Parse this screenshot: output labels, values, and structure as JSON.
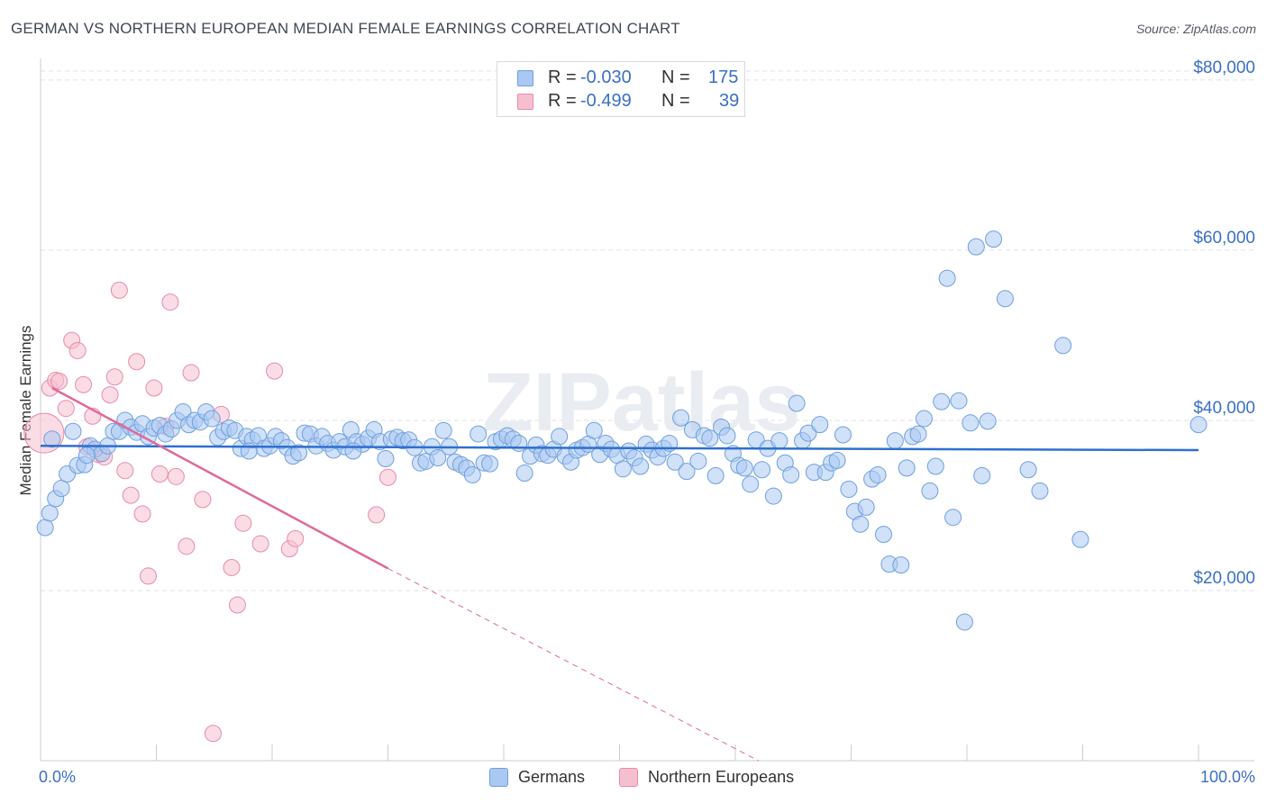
{
  "title": "GERMAN VS NORTHERN EUROPEAN MEDIAN FEMALE EARNINGS CORRELATION CHART",
  "source": "Source: ZipAtlas.com",
  "colors": {
    "blue_fill": "#a9c8f2",
    "blue_stroke": "#6f9fdc",
    "blue_line": "#2e6fd1",
    "pink_fill": "#f6bfd0",
    "pink_stroke": "#e98aa8",
    "pink_line": "#e0689a",
    "axis_label": "#3a6fc4",
    "grid": "#dfe2e8"
  },
  "legend": {
    "rows": [
      {
        "r_label": "R = ",
        "r_value": "-0.030",
        "n_label": "N = ",
        "n_value": "175",
        "series": "Germans"
      },
      {
        "r_label": "R = ",
        "r_value": "-0.499",
        "n_label": "N = ",
        "n_value": "39",
        "series": "Northern Europeans"
      }
    ]
  },
  "bottom_legend": [
    "Germans",
    "Northern Europeans"
  ],
  "chart_data": {
    "type": "scatter",
    "title": "GERMAN VS NORTHERN EUROPEAN MEDIAN FEMALE EARNINGS CORRELATION CHART",
    "xlabel": "",
    "ylabel": "Median Female Earnings",
    "xlim": [
      0,
      100
    ],
    "ylim": [
      0,
      82000
    ],
    "x_tick_labels": [
      "0.0%",
      "100.0%"
    ],
    "y_ticks": [
      20000,
      40000,
      60000,
      80000
    ],
    "y_tick_labels": [
      "$20,000",
      "$40,000",
      "$60,000",
      "$80,000"
    ],
    "watermark": "ZIPatlas",
    "series": [
      {
        "name": "Germans",
        "r": -0.03,
        "n": 175,
        "trend": {
          "x": [
            0,
            100
          ],
          "y": [
            37000,
            36500
          ],
          "dashed_from": null
        },
        "points": [
          [
            0.4,
            27400
          ],
          [
            0.8,
            29100
          ],
          [
            1.3,
            30800
          ],
          [
            1.8,
            32000
          ],
          [
            2.3,
            33700
          ],
          [
            2.8,
            38700
          ],
          [
            3.2,
            34700
          ],
          [
            3.8,
            34800
          ],
          [
            4.3,
            37000
          ],
          [
            4.7,
            36600
          ],
          [
            5.3,
            36100
          ],
          [
            5.8,
            37000
          ],
          [
            6.3,
            38700
          ],
          [
            6.8,
            38700
          ],
          [
            7.3,
            40000
          ],
          [
            7.8,
            39200
          ],
          [
            8.3,
            38600
          ],
          [
            8.8,
            39600
          ],
          [
            9.3,
            38100
          ],
          [
            9.8,
            39100
          ],
          [
            10.3,
            39400
          ],
          [
            10.8,
            38400
          ],
          [
            11.3,
            39000
          ],
          [
            11.8,
            40000
          ],
          [
            12.3,
            41000
          ],
          [
            12.8,
            39500
          ],
          [
            13.3,
            40000
          ],
          [
            13.8,
            39800
          ],
          [
            14.3,
            41000
          ],
          [
            14.8,
            40200
          ],
          [
            15.3,
            38000
          ],
          [
            15.8,
            38700
          ],
          [
            16.3,
            39100
          ],
          [
            16.8,
            38800
          ],
          [
            17.3,
            36700
          ],
          [
            17.8,
            38100
          ],
          [
            18.3,
            37700
          ],
          [
            18.8,
            38200
          ],
          [
            19.3,
            36700
          ],
          [
            19.8,
            37000
          ],
          [
            20.3,
            38100
          ],
          [
            20.8,
            37600
          ],
          [
            21.3,
            36800
          ],
          [
            21.8,
            35800
          ],
          [
            22.3,
            36200
          ],
          [
            22.8,
            38500
          ],
          [
            23.3,
            38400
          ],
          [
            23.8,
            37000
          ],
          [
            24.3,
            38100
          ],
          [
            24.8,
            37300
          ],
          [
            25.3,
            36500
          ],
          [
            25.8,
            37500
          ],
          [
            26.3,
            36900
          ],
          [
            26.8,
            38900
          ],
          [
            27.3,
            37500
          ],
          [
            27.8,
            37200
          ],
          [
            28.3,
            37900
          ],
          [
            28.8,
            38900
          ],
          [
            29.3,
            37500
          ],
          [
            29.8,
            35500
          ],
          [
            30.3,
            37800
          ],
          [
            30.8,
            38000
          ],
          [
            31.3,
            37600
          ],
          [
            31.8,
            37700
          ],
          [
            32.3,
            36800
          ],
          [
            32.8,
            35000
          ],
          [
            33.3,
            35200
          ],
          [
            33.8,
            36900
          ],
          [
            34.3,
            35600
          ],
          [
            34.8,
            38800
          ],
          [
            35.3,
            36900
          ],
          [
            35.8,
            35100
          ],
          [
            36.3,
            34800
          ],
          [
            36.8,
            34400
          ],
          [
            37.3,
            33600
          ],
          [
            37.8,
            38400
          ],
          [
            38.3,
            35000
          ],
          [
            38.8,
            34900
          ],
          [
            39.3,
            37500
          ],
          [
            39.8,
            37800
          ],
          [
            40.3,
            38200
          ],
          [
            40.8,
            37800
          ],
          [
            41.3,
            37300
          ],
          [
            41.8,
            33800
          ],
          [
            42.3,
            35800
          ],
          [
            42.8,
            37100
          ],
          [
            43.3,
            36100
          ],
          [
            43.8,
            35900
          ],
          [
            44.3,
            36600
          ],
          [
            44.8,
            38100
          ],
          [
            45.3,
            35800
          ],
          [
            45.8,
            35100
          ],
          [
            46.3,
            36500
          ],
          [
            46.8,
            36800
          ],
          [
            47.3,
            37200
          ],
          [
            47.8,
            38800
          ],
          [
            48.3,
            36000
          ],
          [
            48.8,
            37300
          ],
          [
            49.3,
            36600
          ],
          [
            49.8,
            35900
          ],
          [
            50.3,
            34300
          ],
          [
            50.8,
            36400
          ],
          [
            51.3,
            35600
          ],
          [
            51.8,
            34600
          ],
          [
            52.3,
            37200
          ],
          [
            52.8,
            36500
          ],
          [
            53.3,
            35700
          ],
          [
            53.8,
            36700
          ],
          [
            54.3,
            37300
          ],
          [
            54.8,
            35100
          ],
          [
            55.3,
            40300
          ],
          [
            55.8,
            34000
          ],
          [
            56.3,
            38900
          ],
          [
            56.8,
            35200
          ],
          [
            57.3,
            38200
          ],
          [
            57.8,
            37900
          ],
          [
            58.3,
            33500
          ],
          [
            58.8,
            39200
          ],
          [
            59.3,
            38200
          ],
          [
            59.8,
            36100
          ],
          [
            60.3,
            34700
          ],
          [
            60.8,
            34400
          ],
          [
            61.3,
            32500
          ],
          [
            61.8,
            37700
          ],
          [
            62.3,
            34200
          ],
          [
            62.8,
            36700
          ],
          [
            63.3,
            31100
          ],
          [
            63.8,
            37600
          ],
          [
            64.3,
            35000
          ],
          [
            64.8,
            33600
          ],
          [
            65.3,
            42000
          ],
          [
            65.8,
            37600
          ],
          [
            66.3,
            38500
          ],
          [
            66.8,
            33900
          ],
          [
            67.3,
            39500
          ],
          [
            67.8,
            33900
          ],
          [
            68.3,
            35000
          ],
          [
            68.8,
            35300
          ],
          [
            69.3,
            38300
          ],
          [
            69.8,
            31900
          ],
          [
            70.3,
            29300
          ],
          [
            70.8,
            27800
          ],
          [
            71.3,
            29800
          ],
          [
            71.8,
            33100
          ],
          [
            72.3,
            33600
          ],
          [
            72.8,
            26600
          ],
          [
            73.3,
            23100
          ],
          [
            73.8,
            37600
          ],
          [
            74.3,
            23000
          ],
          [
            74.8,
            34400
          ],
          [
            75.3,
            38100
          ],
          [
            75.8,
            38400
          ],
          [
            76.3,
            40200
          ],
          [
            76.8,
            31700
          ],
          [
            77.3,
            34600
          ],
          [
            77.8,
            42200
          ],
          [
            78.3,
            56700
          ],
          [
            78.8,
            28600
          ],
          [
            79.3,
            42300
          ],
          [
            79.8,
            16300
          ],
          [
            80.3,
            39700
          ],
          [
            80.8,
            60400
          ],
          [
            81.3,
            33500
          ],
          [
            81.8,
            39900
          ],
          [
            82.3,
            61300
          ],
          [
            83.3,
            54300
          ],
          [
            85.3,
            34200
          ],
          [
            86.3,
            31700
          ],
          [
            88.3,
            48800
          ],
          [
            89.8,
            26000
          ],
          [
            1.0,
            37800
          ],
          [
            4.0,
            35900
          ],
          [
            18.0,
            36400
          ],
          [
            27.0,
            36400
          ],
          [
            100.0,
            39500
          ]
        ]
      },
      {
        "name": "Northern Europeans",
        "r": -0.499,
        "n": 39,
        "trend": {
          "x": [
            1,
            30
          ],
          "y": [
            43800,
            22600
          ],
          "dashed_to": {
            "x": 62,
            "y": 0
          }
        },
        "points": [
          [
            0.3,
            38500
          ],
          [
            0.8,
            43800
          ],
          [
            1.3,
            44700
          ],
          [
            1.6,
            44600
          ],
          [
            2.2,
            41400
          ],
          [
            2.7,
            49400
          ],
          [
            3.2,
            48200
          ],
          [
            3.7,
            44200
          ],
          [
            4.0,
            36900
          ],
          [
            4.5,
            40500
          ],
          [
            5.0,
            36000
          ],
          [
            5.5,
            35700
          ],
          [
            6.0,
            43000
          ],
          [
            6.4,
            45100
          ],
          [
            6.8,
            55300
          ],
          [
            7.3,
            34100
          ],
          [
            7.8,
            31200
          ],
          [
            8.3,
            46900
          ],
          [
            8.8,
            29000
          ],
          [
            9.3,
            21700
          ],
          [
            9.8,
            43800
          ],
          [
            10.3,
            33700
          ],
          [
            10.8,
            39300
          ],
          [
            11.2,
            53900
          ],
          [
            11.7,
            33400
          ],
          [
            12.6,
            25200
          ],
          [
            13.0,
            45600
          ],
          [
            14.0,
            30700
          ],
          [
            14.9,
            3200
          ],
          [
            15.6,
            40700
          ],
          [
            16.5,
            22700
          ],
          [
            17.0,
            18300
          ],
          [
            17.5,
            27900
          ],
          [
            19.0,
            25500
          ],
          [
            20.2,
            45800
          ],
          [
            21.5,
            24900
          ],
          [
            22.0,
            26100
          ],
          [
            29.0,
            28900
          ],
          [
            30.0,
            33300
          ]
        ]
      }
    ]
  }
}
